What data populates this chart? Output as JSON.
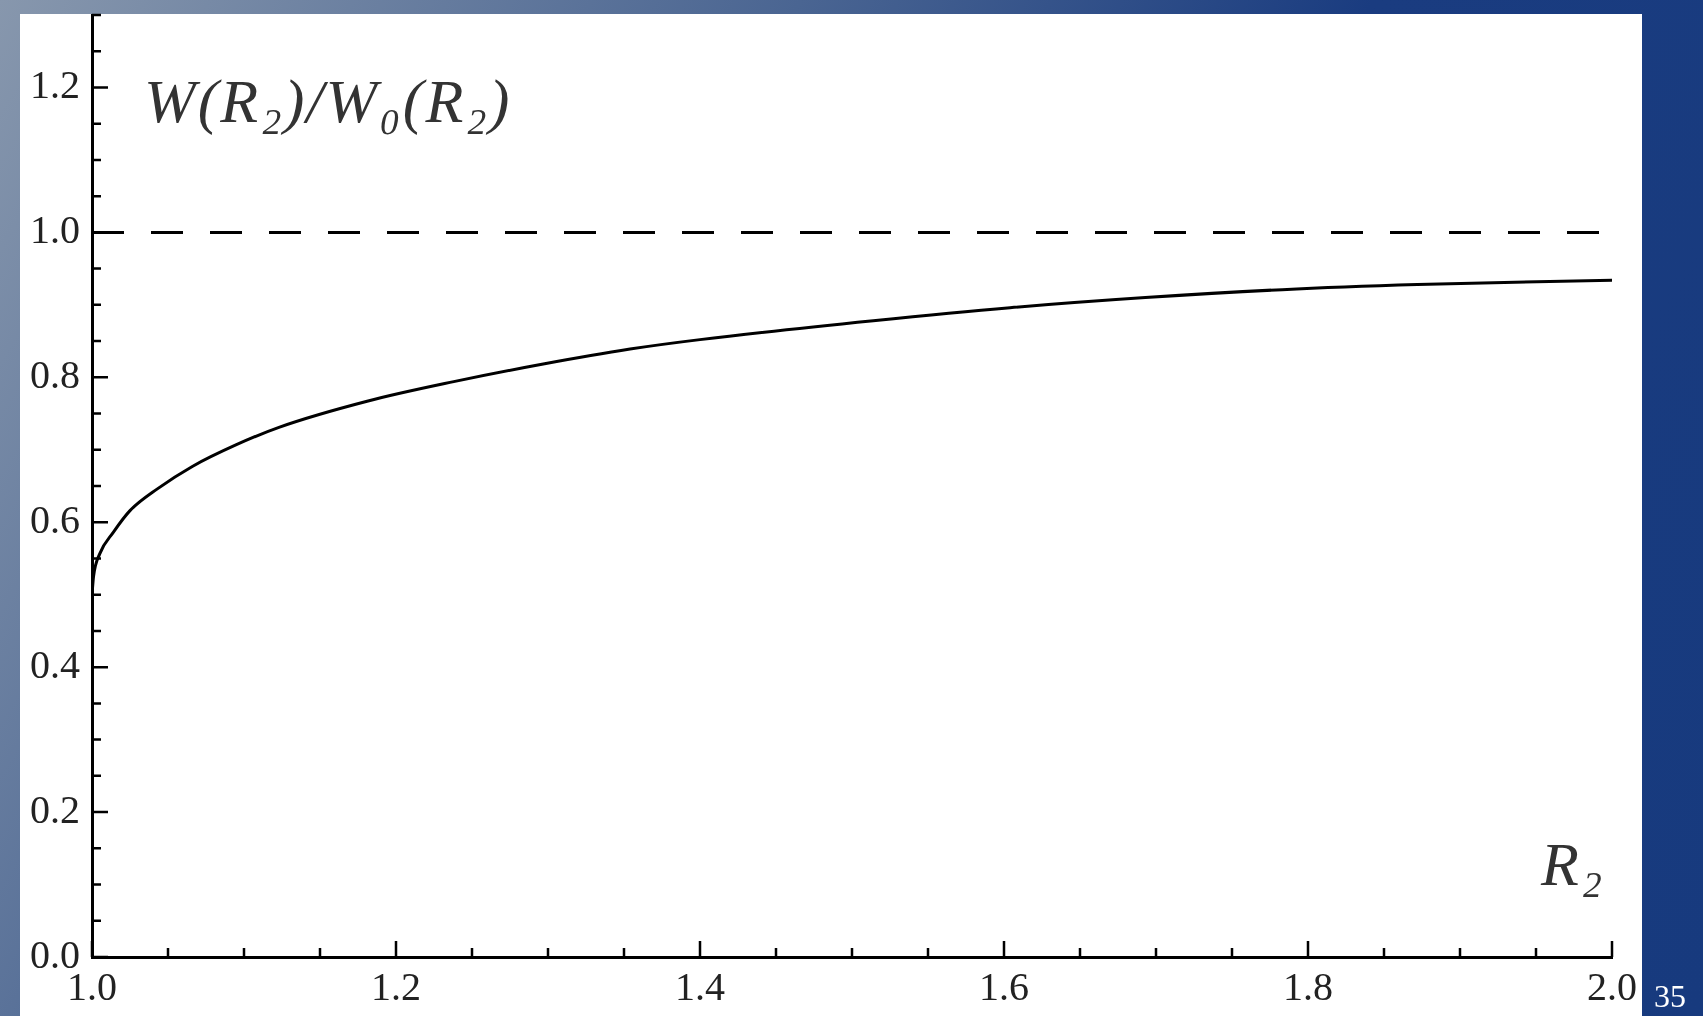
{
  "chart_data": {
    "type": "line",
    "xlabel": "R₂",
    "ylabel": "W(R₂)/W₀(R₂)",
    "annotations": [
      "35"
    ],
    "xlim": [
      1,
      2
    ],
    "ylim": [
      0,
      1.3
    ],
    "xticks": [
      {
        "value": 1,
        "label": "1.0"
      },
      {
        "value": 1.05,
        "label": null
      },
      {
        "value": 1.1,
        "label": null
      },
      {
        "value": 1.15,
        "label": null
      },
      1.2,
      {
        "value": 1.25,
        "label": null
      },
      {
        "value": 1.3,
        "label": null
      },
      {
        "value": 1.35,
        "label": null
      },
      1.4,
      {
        "value": 1.45,
        "label": null
      },
      {
        "value": 1.5,
        "label": null
      },
      {
        "value": 1.55,
        "label": null
      },
      1.6,
      {
        "value": 1.65,
        "label": null
      },
      {
        "value": 1.7,
        "label": null
      },
      {
        "value": 1.75,
        "label": null
      },
      1.8,
      {
        "value": 1.85,
        "label": null
      },
      {
        "value": 1.9,
        "label": null
      },
      {
        "value": 1.95,
        "label": null
      },
      {
        "value": 2,
        "label": "2.0"
      }
    ],
    "yticks": [
      {
        "value": 0,
        "label": "0.0"
      },
      {
        "value": 0.05,
        "label": null
      },
      {
        "value": 0.1,
        "label": null
      },
      {
        "value": 0.15,
        "label": null
      },
      0.2,
      {
        "value": 0.25,
        "label": null
      },
      {
        "value": 0.3,
        "label": null
      },
      {
        "value": 0.35,
        "label": null
      },
      0.4,
      {
        "value": 0.45,
        "label": null
      },
      {
        "value": 0.5,
        "label": null
      },
      {
        "value": 0.55,
        "label": null
      },
      0.6,
      {
        "value": 0.65,
        "label": null
      },
      {
        "value": 0.7,
        "label": null
      },
      {
        "value": 0.75,
        "label": null
      },
      0.8,
      {
        "value": 0.85,
        "label": null
      },
      {
        "value": 0.9,
        "label": null
      },
      {
        "value": 0.95,
        "label": null
      },
      {
        "value": 1,
        "label": "1.0"
      },
      {
        "value": 1.05,
        "label": null
      },
      {
        "value": 1.1,
        "label": null
      },
      {
        "value": 1.15,
        "label": null
      },
      1.2,
      {
        "value": 1.25,
        "label": null
      },
      {
        "value": 1.3,
        "label": null
      }
    ],
    "x": [
      1,
      1.001,
      1.005,
      1.014,
      1.025,
      1.043,
      1.066,
      1.095,
      1.123,
      1.181,
      1.238,
      1.296,
      1.354,
      1.4,
      1.514,
      1.604,
      1.693,
      1.783,
      1.872,
      2
    ],
    "series": [
      {
        "color": "#000000",
        "values": [
          0.5,
          0.525,
          0.556,
          0.586,
          0.616,
          0.646,
          0.677,
          0.707,
          0.731,
          0.767,
          0.794,
          0.818,
          0.839,
          0.852,
          0.878,
          0.896,
          0.91,
          0.921,
          0.928,
          0.934
        ]
      }
    ],
    "ref_lines": [
      {
        "axis": "y",
        "value": 1,
        "color": "#000000",
        "line_style": "dashed"
      }
    ],
    "marker": "none",
    "line_style": "solid"
  }
}
